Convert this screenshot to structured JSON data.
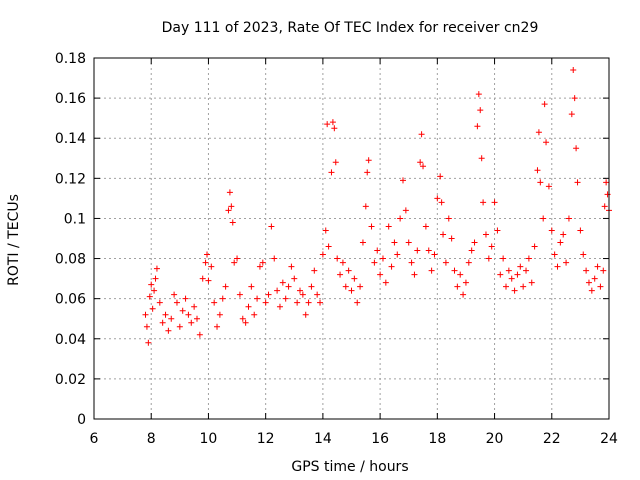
{
  "chart_data": {
    "type": "scatter",
    "title": "Day 111 of 2023, Rate Of TEC Index for receiver cn29",
    "xlabel": "GPS time / hours",
    "ylabel": "ROTI / TECUs",
    "xlim": [
      6,
      24
    ],
    "ylim": [
      0,
      0.18
    ],
    "x_ticks": [
      6,
      8,
      10,
      12,
      14,
      16,
      18,
      20,
      22,
      24
    ],
    "x_tick_labels": [
      "6",
      "8",
      "10",
      "12",
      "14",
      "16",
      "18",
      "20",
      "22",
      "24"
    ],
    "y_ticks": [
      0,
      0.02,
      0.04,
      0.06,
      0.08,
      0.1,
      0.12,
      0.14,
      0.16,
      0.18
    ],
    "y_tick_labels": [
      "0",
      "0.02",
      "0.04",
      "0.06",
      "0.08",
      "0.1",
      "0.12",
      "0.14",
      "0.16",
      "0.18"
    ],
    "grid": true,
    "marker": "+",
    "color": "#ff0000",
    "series": [
      {
        "name": "ROTI",
        "points": [
          [
            7.8,
            0.052
          ],
          [
            7.85,
            0.046
          ],
          [
            7.9,
            0.038
          ],
          [
            7.95,
            0.061
          ],
          [
            8.0,
            0.067
          ],
          [
            8.05,
            0.055
          ],
          [
            8.1,
            0.064
          ],
          [
            8.15,
            0.07
          ],
          [
            8.2,
            0.075
          ],
          [
            8.3,
            0.058
          ],
          [
            8.4,
            0.048
          ],
          [
            8.5,
            0.052
          ],
          [
            8.6,
            0.044
          ],
          [
            8.7,
            0.05
          ],
          [
            8.8,
            0.062
          ],
          [
            8.9,
            0.058
          ],
          [
            9.0,
            0.046
          ],
          [
            9.1,
            0.054
          ],
          [
            9.2,
            0.06
          ],
          [
            9.3,
            0.052
          ],
          [
            9.4,
            0.048
          ],
          [
            9.5,
            0.056
          ],
          [
            9.6,
            0.05
          ],
          [
            9.7,
            0.042
          ],
          [
            9.8,
            0.07
          ],
          [
            9.9,
            0.078
          ],
          [
            9.95,
            0.082
          ],
          [
            10.0,
            0.069
          ],
          [
            10.1,
            0.076
          ],
          [
            10.2,
            0.058
          ],
          [
            10.3,
            0.046
          ],
          [
            10.4,
            0.052
          ],
          [
            10.5,
            0.06
          ],
          [
            10.6,
            0.066
          ],
          [
            10.7,
            0.104
          ],
          [
            10.75,
            0.113
          ],
          [
            10.8,
            0.106
          ],
          [
            10.85,
            0.098
          ],
          [
            10.9,
            0.078
          ],
          [
            11.0,
            0.08
          ],
          [
            11.1,
            0.062
          ],
          [
            11.2,
            0.05
          ],
          [
            11.3,
            0.048
          ],
          [
            11.4,
            0.056
          ],
          [
            11.5,
            0.066
          ],
          [
            11.6,
            0.052
          ],
          [
            11.7,
            0.06
          ],
          [
            11.8,
            0.076
          ],
          [
            11.9,
            0.078
          ],
          [
            12.0,
            0.058
          ],
          [
            12.1,
            0.062
          ],
          [
            12.2,
            0.096
          ],
          [
            12.3,
            0.08
          ],
          [
            12.4,
            0.064
          ],
          [
            12.5,
            0.056
          ],
          [
            12.6,
            0.068
          ],
          [
            12.7,
            0.06
          ],
          [
            12.8,
            0.066
          ],
          [
            12.9,
            0.076
          ],
          [
            13.0,
            0.07
          ],
          [
            13.1,
            0.058
          ],
          [
            13.2,
            0.064
          ],
          [
            13.3,
            0.062
          ],
          [
            13.4,
            0.052
          ],
          [
            13.5,
            0.058
          ],
          [
            13.6,
            0.066
          ],
          [
            13.7,
            0.074
          ],
          [
            13.8,
            0.062
          ],
          [
            13.9,
            0.058
          ],
          [
            14.0,
            0.082
          ],
          [
            14.1,
            0.094
          ],
          [
            14.15,
            0.147
          ],
          [
            14.2,
            0.086
          ],
          [
            14.3,
            0.123
          ],
          [
            14.35,
            0.148
          ],
          [
            14.4,
            0.145
          ],
          [
            14.45,
            0.128
          ],
          [
            14.5,
            0.08
          ],
          [
            14.6,
            0.072
          ],
          [
            14.7,
            0.078
          ],
          [
            14.8,
            0.066
          ],
          [
            14.9,
            0.074
          ],
          [
            15.0,
            0.064
          ],
          [
            15.1,
            0.07
          ],
          [
            15.2,
            0.058
          ],
          [
            15.3,
            0.066
          ],
          [
            15.4,
            0.088
          ],
          [
            15.5,
            0.106
          ],
          [
            15.55,
            0.123
          ],
          [
            15.6,
            0.129
          ],
          [
            15.7,
            0.096
          ],
          [
            15.8,
            0.078
          ],
          [
            15.9,
            0.084
          ],
          [
            16.0,
            0.072
          ],
          [
            16.1,
            0.08
          ],
          [
            16.2,
            0.068
          ],
          [
            16.3,
            0.096
          ],
          [
            16.4,
            0.076
          ],
          [
            16.5,
            0.088
          ],
          [
            16.6,
            0.082
          ],
          [
            16.7,
            0.1
          ],
          [
            16.8,
            0.119
          ],
          [
            16.9,
            0.104
          ],
          [
            17.0,
            0.088
          ],
          [
            17.1,
            0.078
          ],
          [
            17.2,
            0.072
          ],
          [
            17.3,
            0.084
          ],
          [
            17.4,
            0.128
          ],
          [
            17.45,
            0.142
          ],
          [
            17.5,
            0.126
          ],
          [
            17.6,
            0.096
          ],
          [
            17.7,
            0.084
          ],
          [
            17.8,
            0.074
          ],
          [
            17.9,
            0.082
          ],
          [
            18.0,
            0.11
          ],
          [
            18.1,
            0.121
          ],
          [
            18.15,
            0.108
          ],
          [
            18.2,
            0.092
          ],
          [
            18.3,
            0.078
          ],
          [
            18.4,
            0.1
          ],
          [
            18.5,
            0.09
          ],
          [
            18.6,
            0.074
          ],
          [
            18.7,
            0.066
          ],
          [
            18.8,
            0.072
          ],
          [
            18.9,
            0.062
          ],
          [
            19.0,
            0.068
          ],
          [
            19.1,
            0.078
          ],
          [
            19.2,
            0.084
          ],
          [
            19.3,
            0.088
          ],
          [
            19.4,
            0.146
          ],
          [
            19.45,
            0.162
          ],
          [
            19.5,
            0.154
          ],
          [
            19.55,
            0.13
          ],
          [
            19.6,
            0.108
          ],
          [
            19.7,
            0.092
          ],
          [
            19.8,
            0.08
          ],
          [
            19.9,
            0.086
          ],
          [
            20.0,
            0.108
          ],
          [
            20.1,
            0.094
          ],
          [
            20.2,
            0.072
          ],
          [
            20.3,
            0.08
          ],
          [
            20.4,
            0.066
          ],
          [
            20.5,
            0.074
          ],
          [
            20.6,
            0.07
          ],
          [
            20.7,
            0.064
          ],
          [
            20.8,
            0.072
          ],
          [
            20.9,
            0.076
          ],
          [
            21.0,
            0.066
          ],
          [
            21.1,
            0.074
          ],
          [
            21.2,
            0.08
          ],
          [
            21.3,
            0.068
          ],
          [
            21.4,
            0.086
          ],
          [
            21.5,
            0.124
          ],
          [
            21.55,
            0.143
          ],
          [
            21.6,
            0.118
          ],
          [
            21.7,
            0.1
          ],
          [
            21.75,
            0.157
          ],
          [
            21.8,
            0.138
          ],
          [
            21.9,
            0.116
          ],
          [
            22.0,
            0.094
          ],
          [
            22.1,
            0.082
          ],
          [
            22.2,
            0.076
          ],
          [
            22.3,
            0.088
          ],
          [
            22.4,
            0.092
          ],
          [
            22.5,
            0.078
          ],
          [
            22.6,
            0.1
          ],
          [
            22.7,
            0.152
          ],
          [
            22.75,
            0.174
          ],
          [
            22.8,
            0.16
          ],
          [
            22.85,
            0.135
          ],
          [
            22.9,
            0.118
          ],
          [
            23.0,
            0.094
          ],
          [
            23.1,
            0.082
          ],
          [
            23.2,
            0.074
          ],
          [
            23.3,
            0.068
          ],
          [
            23.4,
            0.064
          ],
          [
            23.5,
            0.07
          ],
          [
            23.6,
            0.076
          ],
          [
            23.7,
            0.066
          ],
          [
            23.8,
            0.074
          ],
          [
            23.85,
            0.106
          ],
          [
            23.9,
            0.118
          ],
          [
            23.95,
            0.112
          ],
          [
            24.0,
            0.104
          ]
        ]
      }
    ]
  }
}
